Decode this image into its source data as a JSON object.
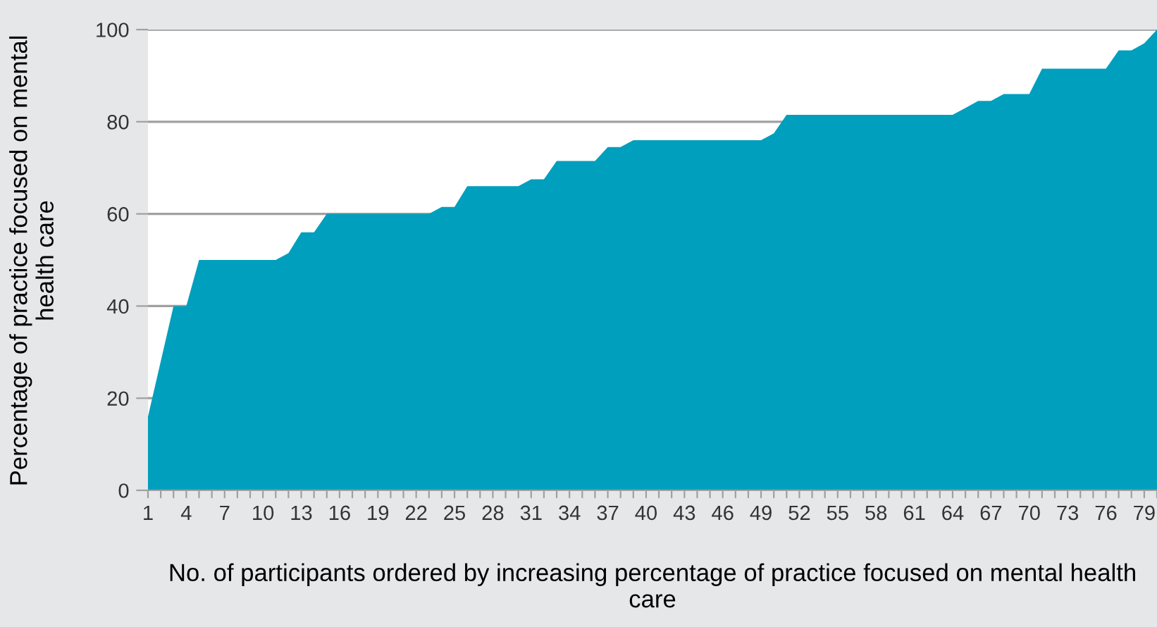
{
  "chart_data": {
    "type": "area",
    "xlabel": "No. of participants ordered by increasing percentage of practice focused on mental health care",
    "ylabel": "Percentage of practice focused on mental health care",
    "categories": [
      "1",
      null,
      null,
      "4",
      null,
      null,
      "7",
      null,
      null,
      "10",
      null,
      null,
      "13",
      null,
      null,
      "16",
      null,
      null,
      "19",
      null,
      null,
      "22",
      null,
      null,
      "25",
      null,
      null,
      "28",
      null,
      null,
      "31",
      null,
      null,
      "34",
      null,
      null,
      "37",
      null,
      null,
      "40",
      null,
      null,
      "43",
      null,
      null,
      "46",
      null,
      null,
      "49",
      null,
      null,
      "52",
      null,
      null,
      "55",
      null,
      null,
      "58",
      null,
      null,
      "61",
      null,
      null,
      "64",
      null,
      null,
      "67",
      null,
      null,
      "70",
      null,
      null,
      "73",
      null,
      null,
      "76",
      null,
      null,
      "79",
      null
    ],
    "values": [
      16,
      28,
      40,
      40,
      50,
      50,
      50,
      50,
      50,
      50,
      50,
      51.5,
      56,
      56,
      60,
      60,
      60,
      60,
      60,
      60,
      60,
      60,
      60,
      61.5,
      61.5,
      66,
      66,
      66,
      66,
      66,
      67.5,
      67.5,
      71.5,
      71.5,
      71.5,
      71.5,
      74.5,
      74.5,
      76,
      76,
      76,
      76,
      76,
      76,
      76,
      76,
      76,
      76,
      76,
      77.5,
      81.5,
      81.5,
      81.5,
      81.5,
      81.5,
      81.5,
      81.5,
      81.5,
      81.5,
      81.5,
      81.5,
      81.5,
      81.5,
      81.5,
      83,
      84.5,
      84.5,
      86,
      86,
      86,
      91.5,
      91.5,
      91.5,
      91.5,
      91.5,
      91.5,
      95.5,
      95.5,
      97,
      100
    ],
    "color": "#009fbd",
    "ylim": [
      0,
      100
    ],
    "yticks": [
      0,
      20,
      40,
      60,
      80,
      100
    ],
    "grid": "y",
    "legend": false
  }
}
